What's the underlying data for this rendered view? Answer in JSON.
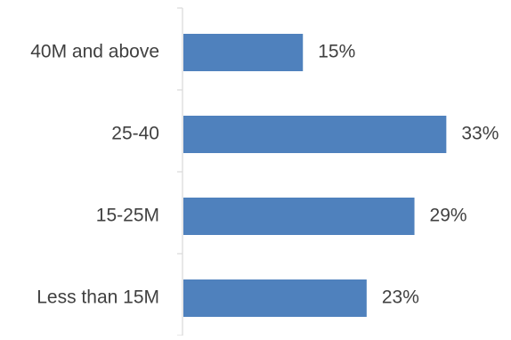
{
  "chart_data": {
    "type": "bar",
    "orientation": "horizontal",
    "categories": [
      "40M and above",
      "25-40",
      "15-25M",
      "Less than 15M"
    ],
    "values": [
      15,
      33,
      29,
      23
    ],
    "value_labels": [
      "15%",
      "33%",
      "29%",
      "23%"
    ],
    "title": "",
    "xlabel": "",
    "ylabel": "",
    "xlim": [
      0,
      36
    ],
    "grid": false,
    "legend": "none",
    "bar_color": "#4f81bd",
    "axis_color": "#d9d9d9",
    "text_color": "#404040"
  }
}
